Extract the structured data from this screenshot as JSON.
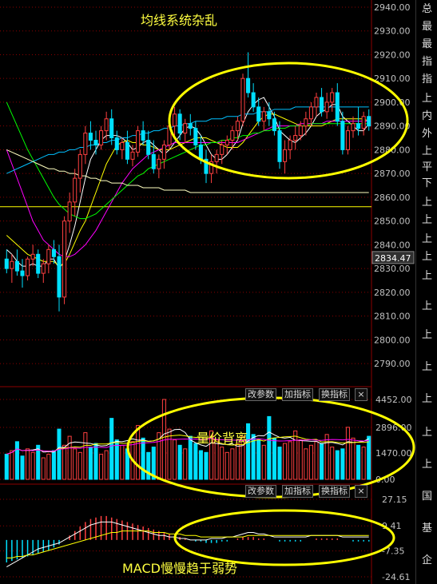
{
  "annotations": {
    "top": "均线系统杂乱",
    "middle": "量价背离",
    "bottom": "MACD慢慢趋于弱势"
  },
  "buttons": {
    "modify_params": "改参数",
    "add_indicator": "加指标",
    "switch_indicator": "换指标",
    "close": "×"
  },
  "right_strip_labels": [
    "总",
    "最",
    "最",
    "指",
    "指",
    "上",
    "内",
    "外",
    "上",
    "平",
    "下",
    "上",
    "上",
    "上",
    "上",
    "上",
    "上",
    "上",
    "上",
    "上",
    "上",
    "上",
    "国",
    "基",
    "企"
  ],
  "colors": {
    "up": "#ff4040",
    "down": "#00e0ff",
    "ma5": "#ffffff",
    "ma10": "#ffff00",
    "ma20": "#ff00ff",
    "ma30": "#00ff00",
    "ma60": "#00c0ff",
    "ma120": "#ffffc0",
    "grid": "#8b0000",
    "axis_text": "#c0c0c0",
    "highlight_price": "#ffff00",
    "annotation": "#ffff40",
    "ellipse": "#ffff00"
  },
  "chart_data": [
    {
      "type": "candlestick",
      "panel": "price",
      "y_ticks": [
        "2940.00",
        "2930.00",
        "2920.00",
        "2910.00",
        "2900.00",
        "2890.00",
        "2880.00",
        "2870.00",
        "2860.00",
        "2850.00",
        "2840.00",
        "2830.00",
        "2820.00",
        "2810.00",
        "2800.00",
        "2790.00"
      ],
      "ylim": [
        2785,
        2942
      ],
      "current_price_label": "2834.47",
      "horizontal_line": 2856,
      "ohlc": [
        [
          2834,
          2838,
          2828,
          2830
        ],
        [
          2830,
          2836,
          2824,
          2833
        ],
        [
          2833,
          2838,
          2827,
          2829
        ],
        [
          2829,
          2834,
          2822,
          2827
        ],
        [
          2827,
          2835,
          2825,
          2834
        ],
        [
          2834,
          2840,
          2831,
          2836
        ],
        [
          2836,
          2838,
          2826,
          2828
        ],
        [
          2828,
          2834,
          2824,
          2832
        ],
        [
          2832,
          2840,
          2828,
          2838
        ],
        [
          2838,
          2842,
          2832,
          2835
        ],
        [
          2835,
          2840,
          2812,
          2818
        ],
        [
          2818,
          2852,
          2815,
          2850
        ],
        [
          2850,
          2862,
          2845,
          2858
        ],
        [
          2858,
          2872,
          2852,
          2868
        ],
        [
          2868,
          2880,
          2862,
          2878
        ],
        [
          2878,
          2890,
          2874,
          2887
        ],
        [
          2887,
          2892,
          2880,
          2884
        ],
        [
          2884,
          2888,
          2878,
          2882
        ],
        [
          2882,
          2890,
          2880,
          2888
        ],
        [
          2888,
          2896,
          2884,
          2893
        ],
        [
          2893,
          2897,
          2882,
          2885
        ],
        [
          2885,
          2888,
          2878,
          2880
        ],
        [
          2880,
          2885,
          2876,
          2883
        ],
        [
          2883,
          2888,
          2874,
          2876
        ],
        [
          2876,
          2882,
          2873,
          2879
        ],
        [
          2879,
          2890,
          2877,
          2888
        ],
        [
          2888,
          2892,
          2882,
          2884
        ],
        [
          2884,
          2888,
          2876,
          2878
        ],
        [
          2878,
          2884,
          2870,
          2872
        ],
        [
          2872,
          2878,
          2868,
          2876
        ],
        [
          2876,
          2884,
          2872,
          2882
        ],
        [
          2882,
          2892,
          2880,
          2890
        ],
        [
          2890,
          2898,
          2886,
          2895
        ],
        [
          2895,
          2897,
          2884,
          2887
        ],
        [
          2887,
          2893,
          2883,
          2891
        ],
        [
          2891,
          2895,
          2886,
          2889
        ],
        [
          2889,
          2892,
          2880,
          2882
        ],
        [
          2882,
          2886,
          2874,
          2876
        ],
        [
          2876,
          2880,
          2866,
          2870
        ],
        [
          2870,
          2878,
          2866,
          2875
        ],
        [
          2875,
          2880,
          2870,
          2878
        ],
        [
          2878,
          2884,
          2874,
          2882
        ],
        [
          2882,
          2886,
          2878,
          2884
        ],
        [
          2884,
          2890,
          2880,
          2888
        ],
        [
          2888,
          2894,
          2884,
          2892
        ],
        [
          2892,
          2912,
          2890,
          2910
        ],
        [
          2910,
          2921,
          2902,
          2904
        ],
        [
          2904,
          2908,
          2896,
          2898
        ],
        [
          2898,
          2902,
          2890,
          2892
        ],
        [
          2892,
          2898,
          2888,
          2896
        ],
        [
          2896,
          2900,
          2890,
          2893
        ],
        [
          2893,
          2896,
          2886,
          2888
        ],
        [
          2888,
          2892,
          2872,
          2875
        ],
        [
          2875,
          2884,
          2870,
          2880
        ],
        [
          2880,
          2886,
          2876,
          2884
        ],
        [
          2884,
          2890,
          2880,
          2886
        ],
        [
          2886,
          2892,
          2884,
          2890
        ],
        [
          2890,
          2896,
          2886,
          2893
        ],
        [
          2893,
          2900,
          2890,
          2898
        ],
        [
          2898,
          2904,
          2894,
          2902
        ],
        [
          2902,
          2906,
          2894,
          2896
        ],
        [
          2896,
          2904,
          2893,
          2900
        ],
        [
          2900,
          2906,
          2896,
          2904
        ],
        [
          2904,
          2908,
          2890,
          2892
        ],
        [
          2892,
          2896,
          2878,
          2880
        ],
        [
          2880,
          2890,
          2878,
          2888
        ],
        [
          2888,
          2894,
          2885,
          2891
        ],
        [
          2891,
          2898,
          2886,
          2889
        ],
        [
          2889,
          2896,
          2886,
          2894
        ],
        [
          2894,
          2897,
          2888,
          2890
        ]
      ],
      "series": [
        {
          "name": "MA5",
          "color": "#ffffff",
          "values": [
            2838,
            2836,
            2833,
            2831,
            2831,
            2832,
            2831,
            2831,
            2834,
            2834,
            2830,
            2833,
            2840,
            2848,
            2858,
            2868,
            2876,
            2880,
            2884,
            2886,
            2886,
            2886,
            2885,
            2883,
            2880,
            2881,
            2883,
            2884,
            2882,
            2880,
            2878,
            2880,
            2883,
            2886,
            2889,
            2890,
            2889,
            2886,
            2882,
            2878,
            2876,
            2876,
            2878,
            2881,
            2884,
            2891,
            2896,
            2899,
            2901,
            2902,
            2898,
            2894,
            2888,
            2886,
            2884,
            2883,
            2885,
            2887,
            2890,
            2894,
            2896,
            2897,
            2899,
            2899,
            2894,
            2892,
            2890,
            2888,
            2888,
            2891
          ]
        },
        {
          "name": "MA10",
          "color": "#ffff00",
          "values": [
            2844,
            2842,
            2840,
            2838,
            2836,
            2835,
            2834,
            2833,
            2833,
            2833,
            2831,
            2832,
            2836,
            2841,
            2846,
            2850,
            2856,
            2862,
            2868,
            2874,
            2878,
            2882,
            2883,
            2884,
            2883,
            2883,
            2882,
            2882,
            2881,
            2880,
            2880,
            2880,
            2881,
            2882,
            2883,
            2884,
            2885,
            2885,
            2885,
            2884,
            2883,
            2882,
            2881,
            2881,
            2881,
            2883,
            2886,
            2889,
            2892,
            2894,
            2895,
            2895,
            2894,
            2893,
            2892,
            2891,
            2890,
            2890,
            2890,
            2890,
            2890,
            2891,
            2892,
            2893,
            2893,
            2893,
            2893,
            2893,
            2893,
            2892
          ]
        },
        {
          "name": "MA20",
          "color": "#ff00ff",
          "values": [
            2880,
            2874,
            2868,
            2862,
            2856,
            2850,
            2846,
            2842,
            2840,
            2838,
            2836,
            2835,
            2835,
            2836,
            2838,
            2840,
            2843,
            2846,
            2850,
            2854,
            2858,
            2862,
            2866,
            2869,
            2872,
            2874,
            2876,
            2878,
            2879,
            2880,
            2881,
            2882,
            2883,
            2883,
            2883,
            2883,
            2883,
            2883,
            2883,
            2883,
            2883,
            2883,
            2883,
            2883,
            2883,
            2884,
            2885,
            2886,
            2887,
            2888,
            2889,
            2890,
            2890,
            2890,
            2890,
            2890,
            2891,
            2891,
            2891,
            2891,
            2891,
            2892,
            2892,
            2892,
            2892,
            2892,
            2892,
            2892,
            2892,
            2892
          ]
        },
        {
          "name": "MA30",
          "color": "#00ff00",
          "values": [
            2900,
            2895,
            2890,
            2885,
            2880,
            2876,
            2872,
            2868,
            2864,
            2860,
            2857,
            2855,
            2853,
            2852,
            2851,
            2851,
            2852,
            2853,
            2855,
            2857,
            2859,
            2861,
            2863,
            2865,
            2867,
            2869,
            2870,
            2872,
            2873,
            2874,
            2875,
            2876,
            2877,
            2878,
            2879,
            2880,
            2881,
            2882,
            2882,
            2883,
            2883,
            2884,
            2884,
            2885,
            2885,
            2886,
            2886,
            2887,
            2887,
            2888,
            2888,
            2889,
            2889,
            2889,
            2890,
            2890,
            2890,
            2890,
            2891,
            2891,
            2891,
            2891,
            2891,
            2891,
            2891,
            2891,
            2891,
            2891,
            2891,
            2891
          ]
        },
        {
          "name": "MA60",
          "color": "#00c0ff",
          "values": [
            2870,
            2871,
            2872,
            2873,
            2874,
            2875,
            2876,
            2877,
            2878,
            2878,
            2879,
            2879,
            2880,
            2880,
            2881,
            2881,
            2882,
            2882,
            2883,
            2883,
            2884,
            2884,
            2885,
            2885,
            2886,
            2886,
            2887,
            2887,
            2888,
            2888,
            2889,
            2889,
            2890,
            2890,
            2891,
            2891,
            2892,
            2892,
            2892,
            2893,
            2893,
            2893,
            2894,
            2894,
            2894,
            2895,
            2895,
            2895,
            2896,
            2896,
            2896,
            2897,
            2897,
            2897,
            2897,
            2898,
            2898,
            2898,
            2898,
            2898,
            2898,
            2898,
            2898,
            2898,
            2898,
            2898,
            2898,
            2898,
            2898,
            2898
          ]
        },
        {
          "name": "MA120",
          "color": "#ffffc0",
          "values": [
            2880,
            2879,
            2878,
            2877,
            2876,
            2875,
            2874,
            2873,
            2872,
            2872,
            2871,
            2871,
            2870,
            2870,
            2869,
            2869,
            2868,
            2868,
            2867,
            2867,
            2866,
            2866,
            2866,
            2865,
            2865,
            2865,
            2864,
            2864,
            2864,
            2864,
            2863,
            2863,
            2863,
            2863,
            2863,
            2862,
            2862,
            2862,
            2862,
            2862,
            2862,
            2862,
            2862,
            2862,
            2862,
            2862,
            2862,
            2862,
            2862,
            2862,
            2862,
            2862,
            2862,
            2862,
            2862,
            2862,
            2862,
            2862,
            2862,
            2862,
            2862,
            2862,
            2862,
            2862,
            2862,
            2862,
            2862,
            2862,
            2862,
            2862
          ]
        }
      ]
    },
    {
      "type": "bar",
      "panel": "volume",
      "y_ticks": [
        "4452.00",
        "2896.00",
        "1470.00",
        "0.00"
      ],
      "ylim": [
        0,
        4452
      ],
      "values": [
        1400,
        1600,
        2100,
        1300,
        1700,
        1500,
        1900,
        1200,
        1400,
        1600,
        2800,
        1900,
        2400,
        1700,
        1500,
        2600,
        1800,
        2000,
        1400,
        1600,
        3400,
        2200,
        1900,
        1700,
        2100,
        3000,
        2300,
        1500,
        1800,
        2600,
        4452,
        2800,
        2200,
        1900,
        1700,
        2400,
        2000,
        1600,
        1500,
        2700,
        2200,
        1800,
        1500,
        1700,
        2000,
        2400,
        3100,
        2500,
        2200,
        1900,
        3500,
        2300,
        1800,
        2000,
        2100,
        2700,
        2200,
        1700,
        1900,
        2100,
        2000,
        2500,
        1800,
        1600,
        1700,
        2900,
        2300,
        1900,
        1800,
        2400
      ],
      "ma_series": [
        {
          "name": "VMA5",
          "color": "#ffffff"
        },
        {
          "name": "VMA10",
          "color": "#ffff00"
        },
        {
          "name": "VMA20",
          "color": "#ff00ff"
        }
      ]
    },
    {
      "type": "macd",
      "panel": "macd",
      "y_ticks": [
        "27.15",
        "9.41",
        "-7.35",
        "-24.61"
      ],
      "ylim": [
        -24.61,
        27.15
      ],
      "hist": [
        -15,
        -14,
        -13,
        -12,
        -11,
        -10,
        -9,
        -8,
        -7,
        -5,
        -3,
        0,
        3,
        6,
        9,
        12,
        14,
        15,
        16,
        16,
        15,
        14,
        13,
        12,
        11,
        10,
        9,
        8,
        7,
        6,
        5,
        4,
        3,
        2,
        1,
        0,
        -1,
        -1,
        -2,
        -2,
        -2,
        -1,
        -1,
        0,
        1,
        2,
        2,
        2,
        1,
        1,
        0,
        0,
        -1,
        -1,
        -1,
        -1,
        -1,
        0,
        0,
        1,
        1,
        1,
        1,
        1,
        0,
        0,
        -1,
        -1,
        -1,
        -1
      ],
      "dif": [
        -18,
        -16,
        -14,
        -12,
        -10,
        -8,
        -6,
        -5,
        -4,
        -3,
        -2,
        0,
        2,
        4,
        6,
        8,
        10,
        11,
        12,
        12,
        12,
        11,
        10,
        9,
        8,
        7,
        6,
        5,
        4,
        3,
        3,
        2,
        2,
        1,
        1,
        0,
        0,
        0,
        0,
        1,
        1,
        1,
        2,
        2,
        3,
        4,
        5,
        5,
        4,
        4,
        3,
        2,
        2,
        2,
        2,
        2,
        2,
        2,
        3,
        3,
        3,
        3,
        3,
        3,
        2,
        2,
        2,
        2,
        2,
        2
      ],
      "dea": [
        -12,
        -12,
        -11,
        -11,
        -10,
        -10,
        -9,
        -8,
        -7,
        -6,
        -5,
        -4,
        -3,
        -2,
        -1,
        0,
        1,
        2,
        3,
        4,
        5,
        5,
        6,
        6,
        6,
        6,
        6,
        6,
        5,
        5,
        5,
        4,
        4,
        4,
        3,
        3,
        3,
        2,
        2,
        2,
        2,
        2,
        2,
        2,
        2,
        2,
        3,
        3,
        3,
        3,
        3,
        3,
        3,
        3,
        3,
        3,
        3,
        3,
        3,
        3,
        3,
        3,
        3,
        3,
        3,
        3,
        3,
        3,
        3,
        3
      ]
    }
  ]
}
